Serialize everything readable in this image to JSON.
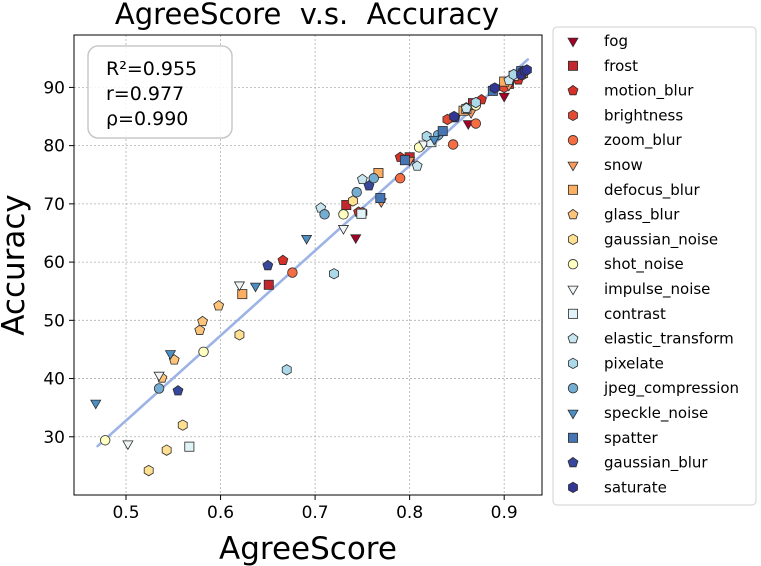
{
  "chart_data": {
    "type": "scatter",
    "title": "AgreeScore  v.s.  Accuracy",
    "xlabel": "AgreeScore",
    "ylabel": "Accuracy",
    "xlim": [
      0.445,
      0.94
    ],
    "ylim": [
      20,
      99
    ],
    "xticks": [
      "0.5",
      "0.6",
      "0.7",
      "0.8",
      "0.9"
    ],
    "yticks": [
      "30",
      "40",
      "50",
      "60",
      "70",
      "80",
      "90"
    ],
    "grid": true,
    "legend_position": "outside-right",
    "stats": [
      "R²=0.955",
      "r=0.977",
      "ρ=0.990"
    ],
    "fit_line": {
      "color": "#9db3e6",
      "x": [
        0.47,
        0.925
      ],
      "y": [
        28.4,
        94.8
      ]
    },
    "series": [
      {
        "name": "fog",
        "marker": "triangle-down",
        "color": "#a50026",
        "points": [
          [
            0.743,
            64.2
          ],
          [
            0.793,
            77.8
          ],
          [
            0.862,
            83.8
          ],
          [
            0.9,
            88.5
          ],
          [
            0.915,
            92.0
          ],
          [
            0.92,
            92.5
          ]
        ]
      },
      {
        "name": "frost",
        "marker": "square",
        "color": "#c1272d",
        "points": [
          [
            0.651,
            56.1
          ],
          [
            0.733,
            69.8
          ],
          [
            0.8,
            78.0
          ],
          [
            0.867,
            87.3
          ],
          [
            0.905,
            90.6
          ]
        ]
      },
      {
        "name": "motion_blur",
        "marker": "pentagon",
        "color": "#d73027",
        "points": [
          [
            0.666,
            60.3
          ],
          [
            0.746,
            68.6
          ],
          [
            0.79,
            78.0
          ],
          [
            0.876,
            87.9
          ],
          [
            0.915,
            91.3
          ]
        ]
      },
      {
        "name": "brightness",
        "marker": "hexagon",
        "color": "#e34a33",
        "points": [
          [
            0.75,
            68.5
          ],
          [
            0.84,
            84.5
          ],
          [
            0.86,
            86.5
          ],
          [
            0.9,
            90.0
          ],
          [
            0.92,
            92.2
          ]
        ]
      },
      {
        "name": "zoom_blur",
        "marker": "circle",
        "color": "#f46d43",
        "points": [
          [
            0.676,
            58.2
          ],
          [
            0.79,
            74.4
          ],
          [
            0.846,
            80.2
          ],
          [
            0.87,
            83.8
          ],
          [
            0.905,
            90.9
          ]
        ]
      },
      {
        "name": "snow",
        "marker": "triangle-down",
        "color": "#f99b5c",
        "points": [
          [
            0.77,
            70.4
          ],
          [
            0.8,
            77.5
          ],
          [
            0.865,
            85.7
          ],
          [
            0.905,
            90.4
          ],
          [
            0.92,
            92.6
          ]
        ]
      },
      {
        "name": "defocus_blur",
        "marker": "square",
        "color": "#fdae61",
        "points": [
          [
            0.623,
            54.5
          ],
          [
            0.767,
            75.3
          ],
          [
            0.857,
            86.0
          ],
          [
            0.9,
            91.0
          ],
          [
            0.92,
            92.5
          ]
        ]
      },
      {
        "name": "glass_blur",
        "marker": "pentagon",
        "color": "#fdc47a",
        "points": [
          [
            0.538,
            40.1
          ],
          [
            0.551,
            43.2
          ],
          [
            0.578,
            48.3
          ],
          [
            0.581,
            49.8
          ],
          [
            0.598,
            52.5
          ]
        ]
      },
      {
        "name": "gaussian_noise",
        "marker": "hexagon",
        "color": "#fee090",
        "points": [
          [
            0.524,
            24.2
          ],
          [
            0.543,
            27.7
          ],
          [
            0.56,
            32.0
          ],
          [
            0.62,
            47.5
          ],
          [
            0.74,
            70.5
          ]
        ]
      },
      {
        "name": "shot_noise",
        "marker": "circle",
        "color": "#ffffbf",
        "points": [
          [
            0.478,
            29.4
          ],
          [
            0.582,
            44.6
          ],
          [
            0.73,
            68.2
          ],
          [
            0.81,
            79.7
          ],
          [
            0.87,
            86.9
          ]
        ]
      },
      {
        "name": "impulse_noise",
        "marker": "triangle-down",
        "color": "#f0f6f8",
        "points": [
          [
            0.502,
            28.8
          ],
          [
            0.535,
            40.6
          ],
          [
            0.62,
            56.1
          ],
          [
            0.73,
            65.8
          ],
          [
            0.815,
            80.3
          ]
        ]
      },
      {
        "name": "contrast",
        "marker": "square",
        "color": "#e0f3f8",
        "points": [
          [
            0.567,
            28.3
          ],
          [
            0.749,
            68.3
          ],
          [
            0.823,
            80.6
          ],
          [
            0.86,
            86.3
          ],
          [
            0.91,
            92.0
          ]
        ]
      },
      {
        "name": "elastic_transform",
        "marker": "pentagon",
        "color": "#c8e6f0",
        "points": [
          [
            0.706,
            69.3
          ],
          [
            0.75,
            74.2
          ],
          [
            0.808,
            76.5
          ],
          [
            0.86,
            86.4
          ],
          [
            0.905,
            91.2
          ]
        ]
      },
      {
        "name": "pixelate",
        "marker": "hexagon",
        "color": "#abd9e9",
        "points": [
          [
            0.67,
            41.5
          ],
          [
            0.72,
            58.0
          ],
          [
            0.818,
            81.6
          ],
          [
            0.87,
            87.4
          ],
          [
            0.91,
            92.2
          ]
        ]
      },
      {
        "name": "jpeg_compression",
        "marker": "circle",
        "color": "#74add1",
        "points": [
          [
            0.535,
            38.3
          ],
          [
            0.71,
            68.2
          ],
          [
            0.744,
            72.0
          ],
          [
            0.762,
            74.4
          ],
          [
            0.83,
            81.8
          ]
        ]
      },
      {
        "name": "speckle_noise",
        "marker": "triangle-down",
        "color": "#4b8fc4",
        "points": [
          [
            0.468,
            35.8
          ],
          [
            0.547,
            44.3
          ],
          [
            0.637,
            55.9
          ],
          [
            0.691,
            64.1
          ],
          [
            0.826,
            81.1
          ]
        ]
      },
      {
        "name": "spatter",
        "marker": "square",
        "color": "#4575b4",
        "points": [
          [
            0.769,
            71.0
          ],
          [
            0.795,
            77.5
          ],
          [
            0.835,
            82.5
          ],
          [
            0.888,
            89.4
          ],
          [
            0.918,
            92.8
          ]
        ]
      },
      {
        "name": "gaussian_blur",
        "marker": "pentagon",
        "color": "#36479c",
        "points": [
          [
            0.555,
            37.9
          ],
          [
            0.65,
            59.4
          ],
          [
            0.757,
            73.1
          ],
          [
            0.848,
            84.8
          ],
          [
            0.92,
            92.8
          ]
        ]
      },
      {
        "name": "saturate",
        "marker": "hexagon",
        "color": "#313695",
        "points": [
          [
            0.847,
            85.0
          ],
          [
            0.89,
            89.9
          ],
          [
            0.918,
            92.2
          ],
          [
            0.922,
            92.8
          ],
          [
            0.924,
            93.0
          ]
        ]
      }
    ]
  }
}
